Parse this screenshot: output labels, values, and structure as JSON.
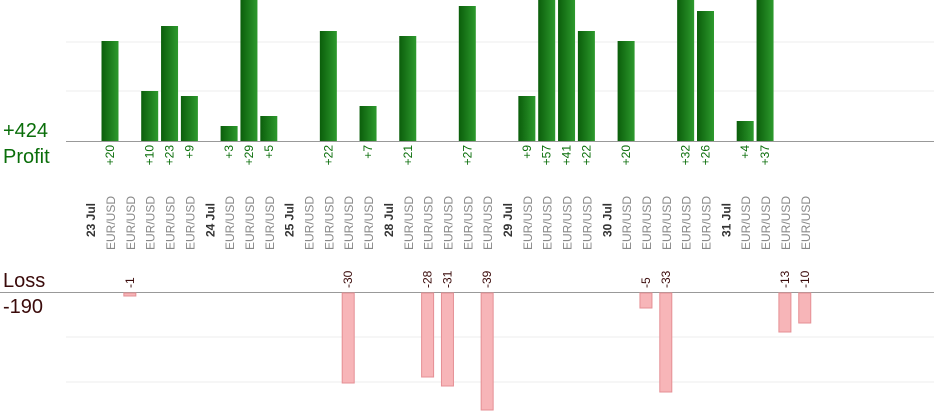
{
  "chart_data": {
    "type": "bar",
    "profit_total": "+424",
    "profit_label": "Profit",
    "loss_label": "Loss",
    "loss_total": "-190",
    "day_labels": [
      "23 Jul",
      "24 Jul",
      "25 Jul",
      "28 Jul",
      "29 Jul",
      "30 Jul",
      "31 Jul"
    ],
    "trades": [
      {
        "day": 0,
        "pair": "EUR/USD",
        "value": 20
      },
      {
        "day": 0,
        "pair": "EUR/USD",
        "value": -1
      },
      {
        "day": 0,
        "pair": "EUR/USD",
        "value": 10
      },
      {
        "day": 0,
        "pair": "EUR/USD",
        "value": 23
      },
      {
        "day": 0,
        "pair": "EUR/USD",
        "value": 9
      },
      {
        "day": 1,
        "pair": "EUR/USD",
        "value": 3
      },
      {
        "day": 1,
        "pair": "EUR/USD",
        "value": 29
      },
      {
        "day": 1,
        "pair": "EUR/USD",
        "value": 5
      },
      {
        "day": 2,
        "pair": "EUR/USD",
        "value": 0
      },
      {
        "day": 2,
        "pair": "EUR/USD",
        "value": 22
      },
      {
        "day": 2,
        "pair": "EUR/USD",
        "value": -30
      },
      {
        "day": 2,
        "pair": "EUR/USD",
        "value": 7
      },
      {
        "day": 3,
        "pair": "EUR/USD",
        "value": 21
      },
      {
        "day": 3,
        "pair": "EUR/USD",
        "value": -28
      },
      {
        "day": 3,
        "pair": "EUR/USD",
        "value": -31
      },
      {
        "day": 3,
        "pair": "EUR/USD",
        "value": 27
      },
      {
        "day": 3,
        "pair": "EUR/USD",
        "value": -39
      },
      {
        "day": 4,
        "pair": "EUR/USD",
        "value": 9
      },
      {
        "day": 4,
        "pair": "EUR/USD",
        "value": 57
      },
      {
        "day": 4,
        "pair": "EUR/USD",
        "value": 41
      },
      {
        "day": 4,
        "pair": "EUR/USD",
        "value": 22
      },
      {
        "day": 5,
        "pair": "EUR/USD",
        "value": 20
      },
      {
        "day": 5,
        "pair": "EUR/USD",
        "value": -5
      },
      {
        "day": 5,
        "pair": "EUR/USD",
        "value": -33
      },
      {
        "day": 5,
        "pair": "EUR/USD",
        "value": 32
      },
      {
        "day": 5,
        "pair": "EUR/USD",
        "value": 26
      },
      {
        "day": 6,
        "pair": "EUR/USD",
        "value": 4
      },
      {
        "day": 6,
        "pair": "EUR/USD",
        "value": 37
      },
      {
        "day": 6,
        "pair": "EUR/USD",
        "value": -13
      },
      {
        "day": 6,
        "pair": "EUR/USD",
        "value": -10
      }
    ],
    "colors": {
      "profit_bar_dark": "#0b5e0b",
      "profit_bar_light": "#2d9a2d",
      "profit_text": "#0a6e0a",
      "loss_bar": "#f7b5b8",
      "loss_bar_border": "#e58f94",
      "loss_text": "#3a0a0a",
      "axis": "#999999",
      "grid": "#eeeeee",
      "pair_text": "#888888",
      "day_text": "#333333"
    }
  }
}
